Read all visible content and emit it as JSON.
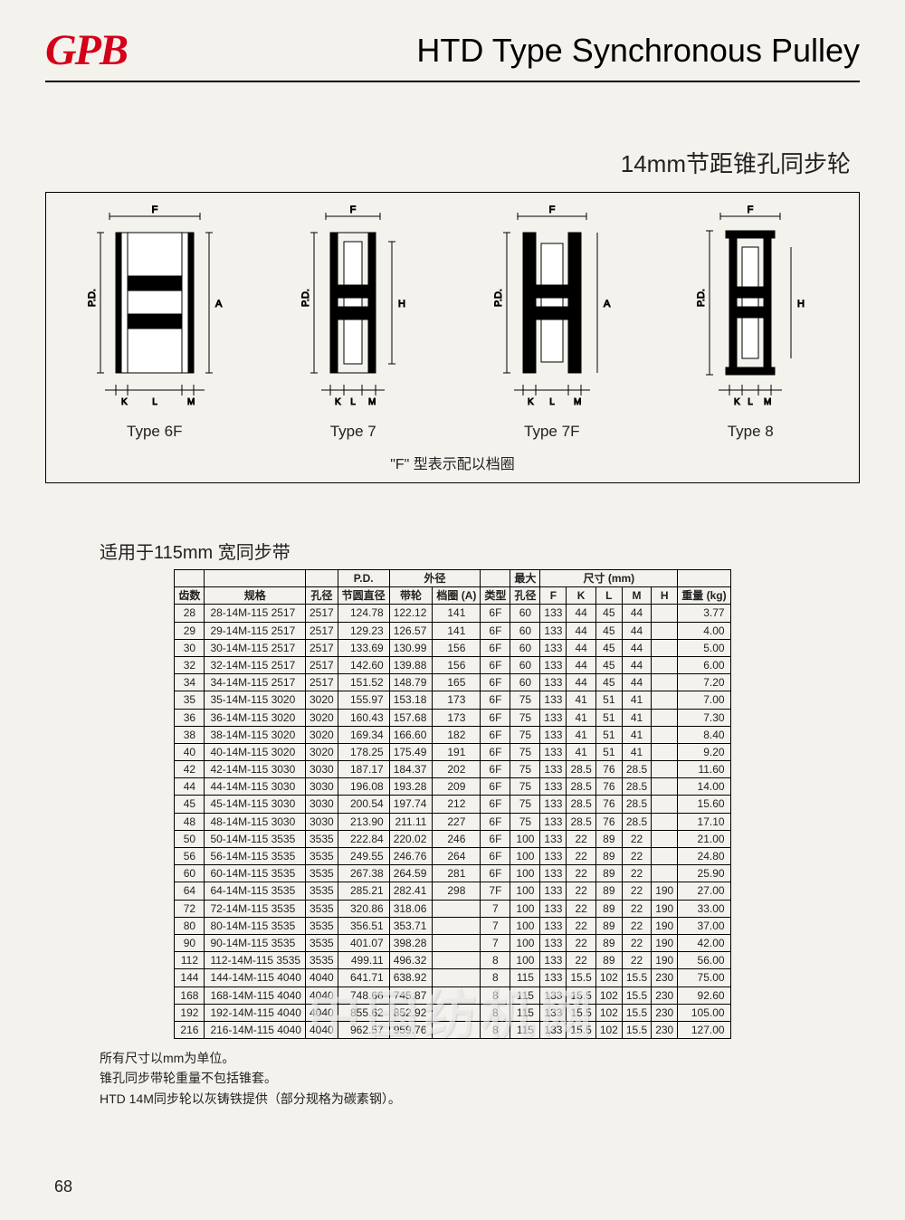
{
  "page": {
    "logo": "GPB",
    "title": "HTD Type Synchronous Pulley",
    "subtitle": "14mm节距锥孔同步轮",
    "diagram": {
      "types": [
        "Type 6F",
        "Type 7",
        "Type 7F",
        "Type 8"
      ],
      "note": "\"F\" 型表示配以档圈"
    },
    "table_title": "适用于115mm 宽同步带",
    "footnotes": [
      "所有尺寸以mm为单位。",
      "锥孔同步带轮重量不包括锥套。",
      "HTD 14M同步轮以灰铸铁提供（部分规格为碳素钢）。"
    ],
    "page_number": "68",
    "watermark": "中国纺机网"
  },
  "table": {
    "header_groups": [
      {
        "label": "",
        "span": 1
      },
      {
        "label": "",
        "span": 1
      },
      {
        "label": "",
        "span": 1
      },
      {
        "label": "P.D.",
        "span": 1
      },
      {
        "label": "外径",
        "span": 2
      },
      {
        "label": "",
        "span": 1
      },
      {
        "label": "最大",
        "span": 1
      },
      {
        "label": "尺寸 (mm)",
        "span": 5
      },
      {
        "label": "",
        "span": 1
      }
    ],
    "columns": [
      "齿数",
      "规格",
      "孔径",
      "节圆直径",
      "带轮",
      "档圈 (A)",
      "类型",
      "孔径",
      "F",
      "K",
      "L",
      "M",
      "H",
      "重量 (kg)"
    ],
    "col_align": [
      "c",
      "left",
      "c",
      "num",
      "num",
      "c",
      "c",
      "c",
      "c",
      "c",
      "c",
      "c",
      "c",
      "num"
    ],
    "rows": [
      [
        "28",
        "28-14M-115 2517",
        "2517",
        "124.78",
        "122.12",
        "141",
        "6F",
        "60",
        "133",
        "44",
        "45",
        "44",
        "",
        "3.77"
      ],
      [
        "29",
        "29-14M-115 2517",
        "2517",
        "129.23",
        "126.57",
        "141",
        "6F",
        "60",
        "133",
        "44",
        "45",
        "44",
        "",
        "4.00"
      ],
      [
        "30",
        "30-14M-115 2517",
        "2517",
        "133.69",
        "130.99",
        "156",
        "6F",
        "60",
        "133",
        "44",
        "45",
        "44",
        "",
        "5.00"
      ],
      [
        "32",
        "32-14M-115 2517",
        "2517",
        "142.60",
        "139.88",
        "156",
        "6F",
        "60",
        "133",
        "44",
        "45",
        "44",
        "",
        "6.00"
      ],
      [
        "34",
        "34-14M-115 2517",
        "2517",
        "151.52",
        "148.79",
        "165",
        "6F",
        "60",
        "133",
        "44",
        "45",
        "44",
        "",
        "7.20"
      ],
      [
        "35",
        "35-14M-115 3020",
        "3020",
        "155.97",
        "153.18",
        "173",
        "6F",
        "75",
        "133",
        "41",
        "51",
        "41",
        "",
        "7.00"
      ],
      [
        "36",
        "36-14M-115 3020",
        "3020",
        "160.43",
        "157.68",
        "173",
        "6F",
        "75",
        "133",
        "41",
        "51",
        "41",
        "",
        "7.30"
      ],
      [
        "38",
        "38-14M-115 3020",
        "3020",
        "169.34",
        "166.60",
        "182",
        "6F",
        "75",
        "133",
        "41",
        "51",
        "41",
        "",
        "8.40"
      ],
      [
        "40",
        "40-14M-115 3020",
        "3020",
        "178.25",
        "175.49",
        "191",
        "6F",
        "75",
        "133",
        "41",
        "51",
        "41",
        "",
        "9.20"
      ],
      [
        "42",
        "42-14M-115 3030",
        "3030",
        "187.17",
        "184.37",
        "202",
        "6F",
        "75",
        "133",
        "28.5",
        "76",
        "28.5",
        "",
        "11.60"
      ],
      [
        "44",
        "44-14M-115 3030",
        "3030",
        "196.08",
        "193.28",
        "209",
        "6F",
        "75",
        "133",
        "28.5",
        "76",
        "28.5",
        "",
        "14.00"
      ],
      [
        "45",
        "45-14M-115 3030",
        "3030",
        "200.54",
        "197.74",
        "212",
        "6F",
        "75",
        "133",
        "28.5",
        "76",
        "28.5",
        "",
        "15.60"
      ],
      [
        "48",
        "48-14M-115 3030",
        "3030",
        "213.90",
        "211.11",
        "227",
        "6F",
        "75",
        "133",
        "28.5",
        "76",
        "28.5",
        "",
        "17.10"
      ],
      [
        "50",
        "50-14M-115 3535",
        "3535",
        "222.84",
        "220.02",
        "246",
        "6F",
        "100",
        "133",
        "22",
        "89",
        "22",
        "",
        "21.00"
      ],
      [
        "56",
        "56-14M-115 3535",
        "3535",
        "249.55",
        "246.76",
        "264",
        "6F",
        "100",
        "133",
        "22",
        "89",
        "22",
        "",
        "24.80"
      ],
      [
        "60",
        "60-14M-115 3535",
        "3535",
        "267.38",
        "264.59",
        "281",
        "6F",
        "100",
        "133",
        "22",
        "89",
        "22",
        "",
        "25.90"
      ],
      [
        "64",
        "64-14M-115 3535",
        "3535",
        "285.21",
        "282.41",
        "298",
        "7F",
        "100",
        "133",
        "22",
        "89",
        "22",
        "190",
        "27.00"
      ],
      [
        "72",
        "72-14M-115 3535",
        "3535",
        "320.86",
        "318.06",
        "",
        "7",
        "100",
        "133",
        "22",
        "89",
        "22",
        "190",
        "33.00"
      ],
      [
        "80",
        "80-14M-115 3535",
        "3535",
        "356.51",
        "353.71",
        "",
        "7",
        "100",
        "133",
        "22",
        "89",
        "22",
        "190",
        "37.00"
      ],
      [
        "90",
        "90-14M-115 3535",
        "3535",
        "401.07",
        "398.28",
        "",
        "7",
        "100",
        "133",
        "22",
        "89",
        "22",
        "190",
        "42.00"
      ],
      [
        "112",
        "112-14M-115 3535",
        "3535",
        "499.11",
        "496.32",
        "",
        "8",
        "100",
        "133",
        "22",
        "89",
        "22",
        "190",
        "56.00"
      ],
      [
        "144",
        "144-14M-115 4040",
        "4040",
        "641.71",
        "638.92",
        "",
        "8",
        "115",
        "133",
        "15.5",
        "102",
        "15.5",
        "230",
        "75.00"
      ],
      [
        "168",
        "168-14M-115 4040",
        "4040",
        "748.66",
        "745.87",
        "",
        "8",
        "115",
        "133",
        "15.5",
        "102",
        "15.5",
        "230",
        "92.60"
      ],
      [
        "192",
        "192-14M-115 4040",
        "4040",
        "855.62",
        "852.92",
        "",
        "8",
        "115",
        "133",
        "15.5",
        "102",
        "15.5",
        "230",
        "105.00"
      ],
      [
        "216",
        "216-14M-115 4040",
        "4040",
        "962.57",
        "959.76",
        "",
        "8",
        "115",
        "133",
        "15.5",
        "102",
        "15.5",
        "230",
        "127.00"
      ]
    ],
    "section_breaks": [
      5,
      10,
      16,
      21
    ]
  },
  "style": {
    "border_color": "#000",
    "logo_color": "#d4001a",
    "bg": "#f4f2ed"
  }
}
